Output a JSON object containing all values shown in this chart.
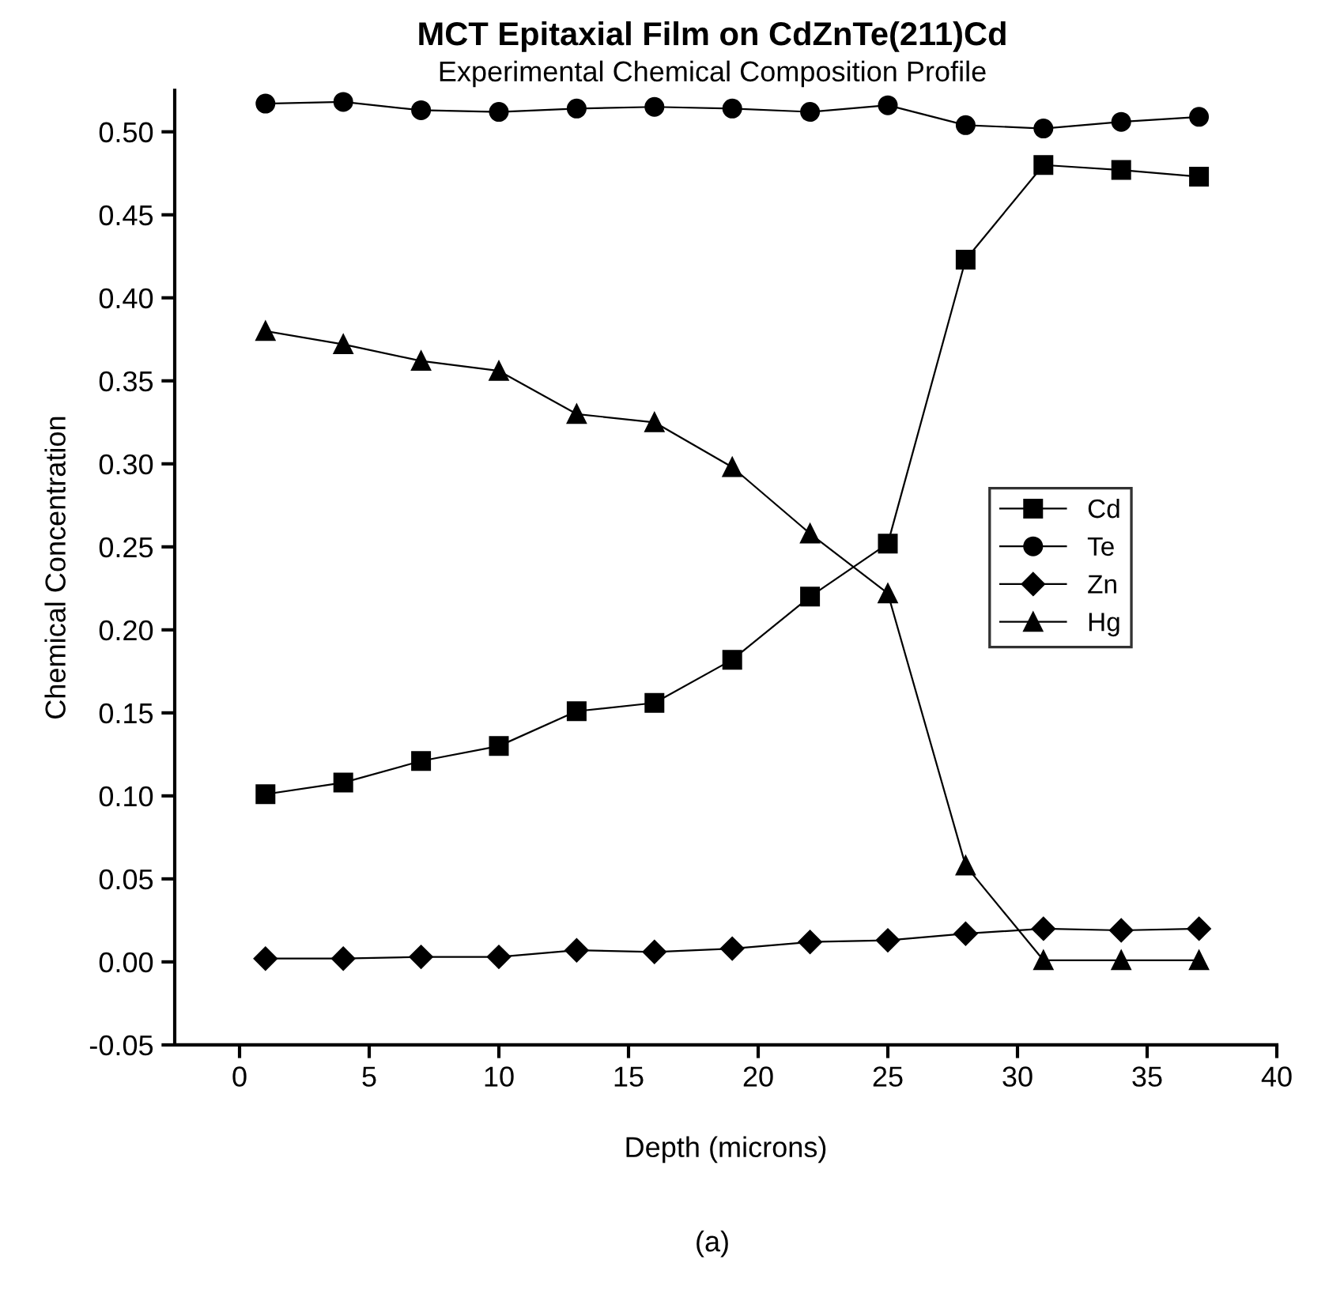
{
  "chart_data": {
    "type": "line",
    "title": "MCT Epitaxial Film on CdZnTe(211)Cd",
    "subtitle": "Experimental Chemical Composition Profile",
    "xlabel": "Depth (microns)",
    "ylabel": "Chemical Concentration",
    "annotations": [
      "(a)"
    ],
    "x": [
      1,
      4,
      7,
      10,
      13,
      16,
      19,
      22,
      25,
      28,
      31,
      34,
      37
    ],
    "series": [
      {
        "name": "Cd",
        "color": "#000000",
        "marker": "square",
        "values": [
          0.101,
          0.108,
          0.121,
          0.13,
          0.151,
          0.156,
          0.182,
          0.22,
          0.252,
          0.423,
          0.48,
          0.477,
          0.473
        ]
      },
      {
        "name": "Te",
        "color": "#000000",
        "marker": "circle",
        "values": [
          0.517,
          0.518,
          0.513,
          0.512,
          0.514,
          0.515,
          0.514,
          0.512,
          0.516,
          0.504,
          0.502,
          0.506,
          0.509
        ]
      },
      {
        "name": "Zn",
        "color": "#000000",
        "marker": "diamond",
        "values": [
          0.002,
          0.002,
          0.003,
          0.003,
          0.007,
          0.006,
          0.008,
          0.012,
          0.013,
          0.017,
          0.02,
          0.019,
          0.02
        ]
      },
      {
        "name": "Hg",
        "color": "#000000",
        "marker": "triangle",
        "values": [
          0.38,
          0.372,
          0.362,
          0.356,
          0.33,
          0.325,
          0.298,
          0.258,
          0.222,
          0.058,
          0.001,
          0.001,
          0.001
        ]
      }
    ],
    "xlim": [
      -2.5,
      40
    ],
    "ylim": [
      -0.05,
      0.525
    ],
    "xticks": [
      0,
      5,
      10,
      15,
      20,
      25,
      30,
      35,
      40
    ],
    "yticks": [
      {
        "value": -0.05,
        "label": "-0.05"
      },
      {
        "value": 0,
        "label": "0.00"
      },
      {
        "value": 0.05,
        "label": "0.05"
      },
      {
        "value": 0.1,
        "label": "0.10"
      },
      {
        "value": 0.15,
        "label": "0.15"
      },
      {
        "value": 0.2,
        "label": "0.20"
      },
      {
        "value": 0.25,
        "label": "0.25"
      },
      {
        "value": 0.3,
        "label": "0.30"
      },
      {
        "value": 0.35,
        "label": "0.35"
      },
      {
        "value": 0.4,
        "label": "0.40"
      },
      {
        "value": 0.45,
        "label": "0.45"
      },
      {
        "value": 0.5,
        "label": "0.50"
      }
    ],
    "grid": false,
    "legend": "right",
    "line_style": "solid"
  }
}
